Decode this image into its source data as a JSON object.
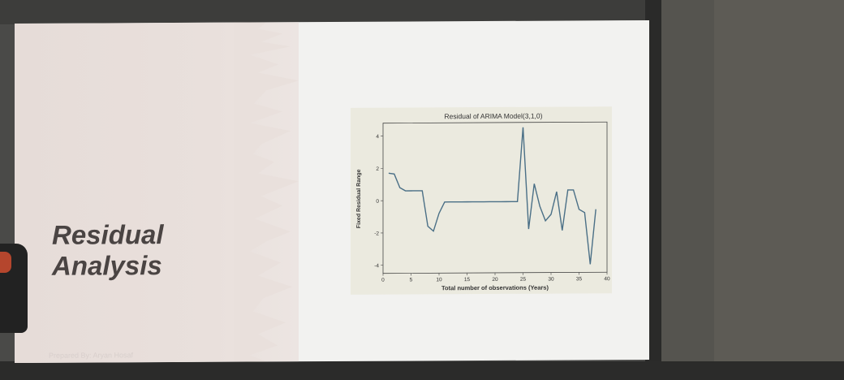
{
  "slide": {
    "title_line1": "Residual",
    "title_line2": "Analysis",
    "footer": "Prepared By: Aryan Hosaf"
  },
  "colors": {
    "line": "#4a6f86",
    "chart_bg": "#ebeadf",
    "left_panel": "#e6dcd8",
    "title_text": "#4a4443"
  },
  "chart_data": {
    "type": "line",
    "title": "Residual of ARIMA Model(3,1,0)",
    "xlabel": "Total number of observations (Years)",
    "ylabel": "Fixed Residual Range",
    "xlim": [
      0,
      40
    ],
    "ylim": [
      -4.5,
      4.8
    ],
    "x_ticks": [
      0,
      5,
      10,
      15,
      20,
      25,
      30,
      35,
      40
    ],
    "y_ticks": [
      -4,
      -2,
      0,
      2,
      4
    ],
    "grid": false,
    "series": [
      {
        "x": [
          1,
          2,
          3,
          4,
          5,
          6,
          7,
          8,
          9,
          10,
          11,
          12,
          13,
          14,
          15,
          16,
          17,
          18,
          19,
          20,
          21,
          22,
          23,
          24,
          25,
          26,
          27,
          28,
          29,
          30,
          31,
          32,
          33,
          34,
          35,
          36,
          37,
          38
        ],
        "y": [
          1.7,
          1.65,
          0.8,
          0.6,
          0.6,
          0.6,
          0.6,
          -1.6,
          -1.9,
          -0.8,
          -0.1,
          -0.1,
          -0.1,
          -0.1,
          -0.1,
          -0.1,
          -0.1,
          -0.1,
          -0.1,
          -0.1,
          -0.1,
          -0.1,
          -0.1,
          -0.1,
          4.5,
          -1.8,
          1.0,
          -0.4,
          -1.3,
          -0.9,
          0.5,
          -1.9,
          0.6,
          0.6,
          -0.6,
          -0.8,
          -4.0,
          -0.6
        ]
      }
    ]
  }
}
